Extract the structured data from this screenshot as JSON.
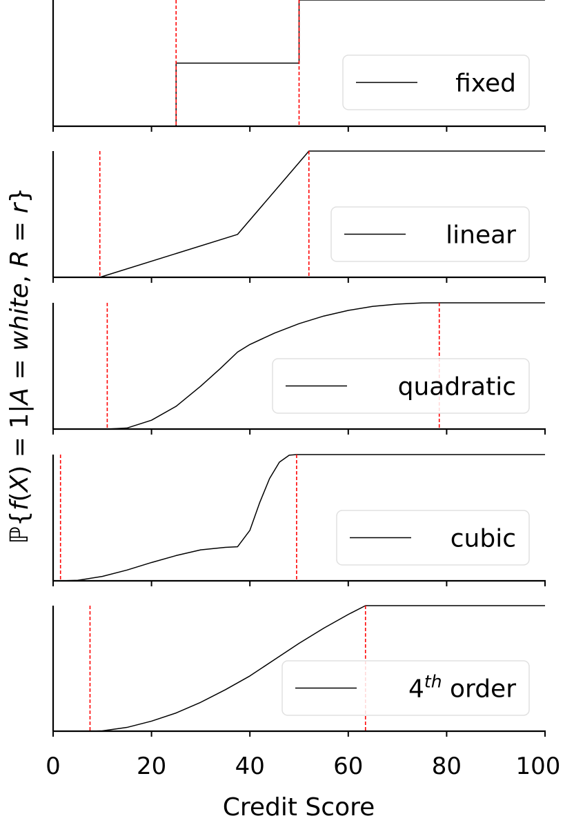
{
  "chart_data": {
    "type": "line",
    "xlabel": "Credit Score",
    "ylabel": "ℙ{f(X) = 1|A = white, R = r}",
    "ylabel_parts": {
      "prefix": "ℙ{",
      "f": "f",
      "mid1": "(",
      "X": "X",
      "mid2": ") = 1|",
      "A": "A",
      "eq": " = ",
      "white": "white",
      "comma": ", ",
      "R": "R",
      "eq2": " = ",
      "r": "r",
      "suffix": "}"
    },
    "xlim": [
      0,
      100
    ],
    "xticks": [
      0,
      20,
      40,
      60,
      80,
      100
    ],
    "xtick_labels": [
      "0",
      "20",
      "40",
      "60",
      "80",
      "100"
    ],
    "ylim": [
      0,
      1
    ],
    "grid": false,
    "line_color": "#000000",
    "threshold_color": "#ff0000",
    "panels": [
      {
        "legend": "fixed",
        "thresholds": [
          25,
          50
        ],
        "x": [
          0,
          25,
          25,
          50,
          50,
          100
        ],
        "y": [
          0,
          0,
          0.5,
          0.5,
          1,
          1
        ]
      },
      {
        "legend": "linear",
        "thresholds": [
          9.5,
          52
        ],
        "x": [
          9.5,
          37.5,
          52,
          100
        ],
        "y": [
          0,
          0.34,
          1,
          1
        ]
      },
      {
        "legend": "quadratic",
        "thresholds": [
          11,
          78.5
        ],
        "x": [
          11,
          15,
          20,
          25,
          30,
          34,
          37.5,
          40,
          45,
          50,
          55,
          60,
          65,
          70,
          75,
          78.5,
          100
        ],
        "y": [
          0,
          0.008,
          0.07,
          0.18,
          0.34,
          0.48,
          0.61,
          0.67,
          0.76,
          0.835,
          0.895,
          0.94,
          0.972,
          0.99,
          0.999,
          1,
          1
        ]
      },
      {
        "legend": "cubic",
        "thresholds": [
          1.5,
          49.5
        ],
        "x": [
          1.5,
          5,
          10,
          15,
          20,
          25,
          30,
          35,
          37.5,
          40,
          42,
          44,
          46,
          48,
          49.5,
          100
        ],
        "y": [
          0,
          0.004,
          0.035,
          0.085,
          0.145,
          0.2,
          0.245,
          0.265,
          0.27,
          0.4,
          0.62,
          0.81,
          0.94,
          0.995,
          1,
          1
        ]
      },
      {
        "legend_prefix": "4",
        "legend_sup": "th",
        "legend_suffix": " order",
        "thresholds": [
          7.5,
          63.5
        ],
        "x": [
          7.5,
          10,
          15,
          20,
          25,
          30,
          35,
          40,
          45,
          50,
          55,
          60,
          63.5,
          100
        ],
        "y": [
          0,
          0.003,
          0.03,
          0.08,
          0.145,
          0.23,
          0.33,
          0.44,
          0.57,
          0.7,
          0.82,
          0.93,
          1,
          1
        ]
      }
    ]
  }
}
